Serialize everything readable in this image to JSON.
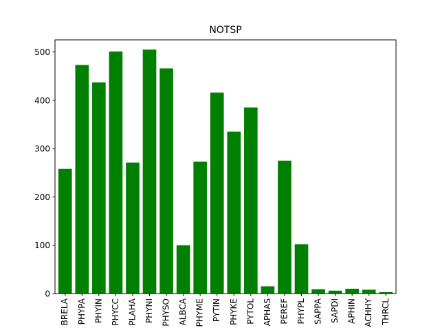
{
  "chart_data": {
    "type": "bar",
    "title": "NOTSP",
    "xlabel": "",
    "ylabel": "",
    "categories": [
      "BRELA",
      "PHYPA",
      "PHYIN",
      "PHYCC",
      "PLAHA",
      "PHYNI",
      "PHYSO",
      "ALBCA",
      "PHYME",
      "PYTIN",
      "PHYKE",
      "PYTOL",
      "APHAS",
      "PEREF",
      "PHYPL",
      "SAPPA",
      "SAPDI",
      "APHIN",
      "ACHHY",
      "THRCL"
    ],
    "values": [
      258,
      473,
      437,
      501,
      271,
      505,
      466,
      100,
      273,
      416,
      335,
      385,
      15,
      275,
      102,
      9,
      6,
      10,
      8,
      3
    ],
    "ylim": [
      0,
      525
    ],
    "yticks": [
      0,
      100,
      200,
      300,
      400,
      500
    ],
    "bar_color": "#008000",
    "grid": false,
    "legend": "none"
  }
}
